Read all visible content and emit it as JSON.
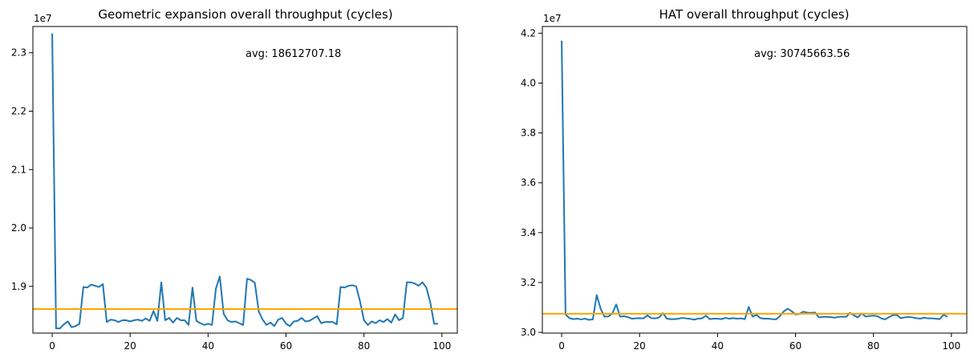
{
  "chart_data": [
    {
      "type": "line",
      "title": "Geometric expansion overall throughput (cycles)",
      "xlabel": "",
      "ylabel": "",
      "offset_label": "1e7",
      "annotation": "avg: 18612707.18",
      "xlim": [
        -4.95,
        103.95
      ],
      "ylim": [
        18.2,
        23.45
      ],
      "x_ticks": [
        0,
        20,
        40,
        60,
        80,
        100
      ],
      "y_ticks": [
        1.9,
        2.0,
        2.1,
        2.2,
        2.3
      ],
      "y_tick_labels": [
        "1.9",
        "2.0",
        "2.1",
        "2.2",
        "2.3"
      ],
      "grid": false,
      "colors": {
        "series": "#1f77b4",
        "average": "#ffa500"
      },
      "average": 18.6127,
      "series": [
        {
          "x_start": 0,
          "values": [
            23.33,
            18.28,
            18.28,
            18.35,
            18.4,
            18.3,
            18.32,
            18.36,
            18.99,
            18.98,
            19.03,
            19.01,
            18.99,
            19.04,
            18.39,
            18.43,
            18.42,
            18.39,
            18.42,
            18.42,
            18.4,
            18.42,
            18.43,
            18.41,
            18.45,
            18.41,
            18.58,
            18.41,
            19.07,
            18.42,
            18.46,
            18.38,
            18.46,
            18.42,
            18.42,
            18.34,
            18.98,
            18.41,
            18.37,
            18.34,
            18.36,
            18.34,
            18.96,
            19.17,
            18.53,
            18.42,
            18.39,
            18.4,
            18.37,
            18.34,
            19.13,
            19.11,
            19.06,
            18.57,
            18.43,
            18.34,
            18.38,
            18.32,
            18.43,
            18.46,
            18.36,
            18.32,
            18.4,
            18.41,
            18.46,
            18.4,
            18.41,
            18.45,
            18.49,
            18.37,
            18.39,
            18.39,
            18.39,
            18.35,
            18.99,
            18.98,
            19.01,
            19.02,
            19.0,
            18.74,
            18.42,
            18.34,
            18.4,
            18.37,
            18.42,
            18.39,
            18.44,
            18.38,
            18.52,
            18.42,
            18.46,
            19.07,
            19.07,
            19.05,
            19.01,
            19.07,
            18.98,
            18.73,
            18.36,
            18.36
          ]
        }
      ]
    },
    {
      "type": "line",
      "title": "HAT overall throughput (cycles)",
      "xlabel": "",
      "ylabel": "",
      "offset_label": "1e7",
      "annotation": "avg: 30745663.56",
      "xlim": [
        -4.95,
        103.95
      ],
      "ylim": [
        29.97,
        42.27
      ],
      "x_ticks": [
        0,
        20,
        40,
        60,
        80,
        100
      ],
      "y_ticks": [
        3.0,
        3.2,
        3.4,
        3.6,
        3.8,
        4.0,
        4.2
      ],
      "y_tick_labels": [
        "3.0",
        "3.2",
        "3.4",
        "3.6",
        "3.8",
        "4.0",
        "4.2"
      ],
      "grid": false,
      "colors": {
        "series": "#1f77b4",
        "average": "#ffa500"
      },
      "average": 30.7457,
      "series": [
        {
          "x_start": 0,
          "values": [
            41.7,
            30.72,
            30.57,
            30.53,
            30.55,
            30.52,
            30.55,
            30.5,
            30.52,
            31.5,
            30.95,
            30.63,
            30.64,
            30.75,
            31.12,
            30.63,
            30.65,
            30.61,
            30.55,
            30.56,
            30.57,
            30.56,
            30.68,
            30.57,
            30.56,
            30.6,
            30.77,
            30.55,
            30.53,
            30.53,
            30.55,
            30.58,
            30.56,
            30.54,
            30.51,
            30.55,
            30.56,
            30.67,
            30.53,
            30.55,
            30.55,
            30.53,
            30.58,
            30.55,
            30.57,
            30.55,
            30.56,
            30.53,
            31.02,
            30.63,
            30.7,
            30.57,
            30.55,
            30.55,
            30.53,
            30.52,
            30.65,
            30.84,
            30.95,
            30.85,
            30.72,
            30.74,
            30.83,
            30.79,
            30.78,
            30.8,
            30.6,
            30.62,
            30.62,
            30.61,
            30.59,
            30.62,
            30.63,
            30.62,
            30.78,
            30.68,
            30.6,
            30.76,
            30.63,
            30.66,
            30.67,
            30.65,
            30.56,
            30.52,
            30.61,
            30.69,
            30.7,
            30.57,
            30.6,
            30.62,
            30.6,
            30.57,
            30.55,
            30.59,
            30.56,
            30.56,
            30.55,
            30.53,
            30.71,
            30.62
          ]
        }
      ]
    }
  ]
}
